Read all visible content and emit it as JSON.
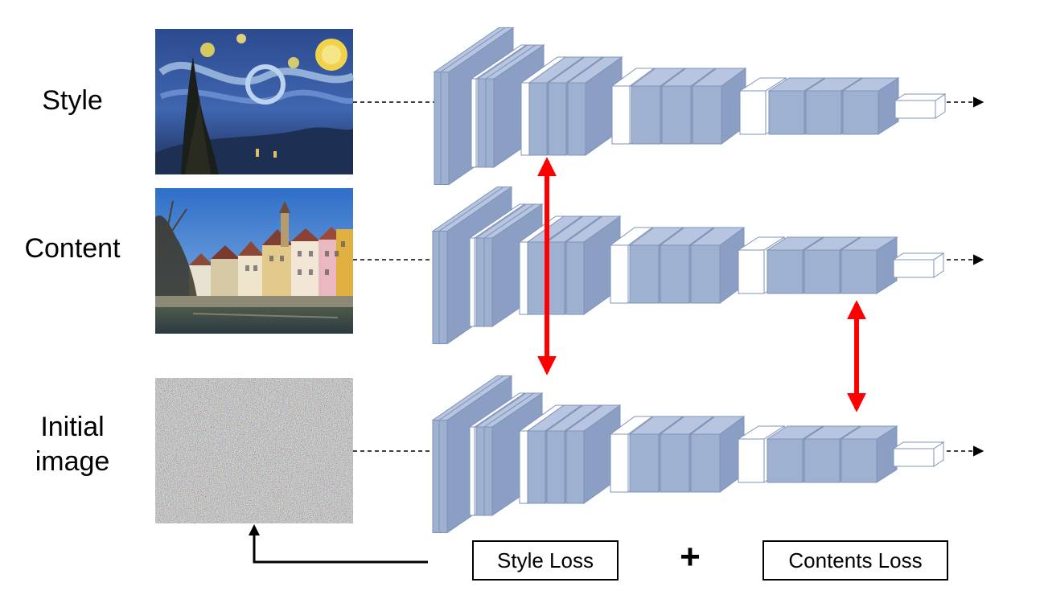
{
  "rows": {
    "style": {
      "label": "Style"
    },
    "content": {
      "label": "Content"
    },
    "initial": {
      "label_line1": "Initial",
      "label_line2": "image"
    }
  },
  "images": {
    "style": {
      "depicts": "starry-night-painting"
    },
    "content": {
      "depicts": "riverside-town-photo"
    },
    "initial": {
      "depicts": "random-noise"
    }
  },
  "losses": {
    "style_loss": "Style Loss",
    "plus_sign": "+",
    "contents_loss": "Contents Loss"
  },
  "colors": {
    "layer_fill": "#9fb1d1",
    "layer_stroke": "#7f93b8",
    "pool_fill": "#ffffff",
    "loss_arrow": "#ff0000",
    "line": "#000000"
  }
}
